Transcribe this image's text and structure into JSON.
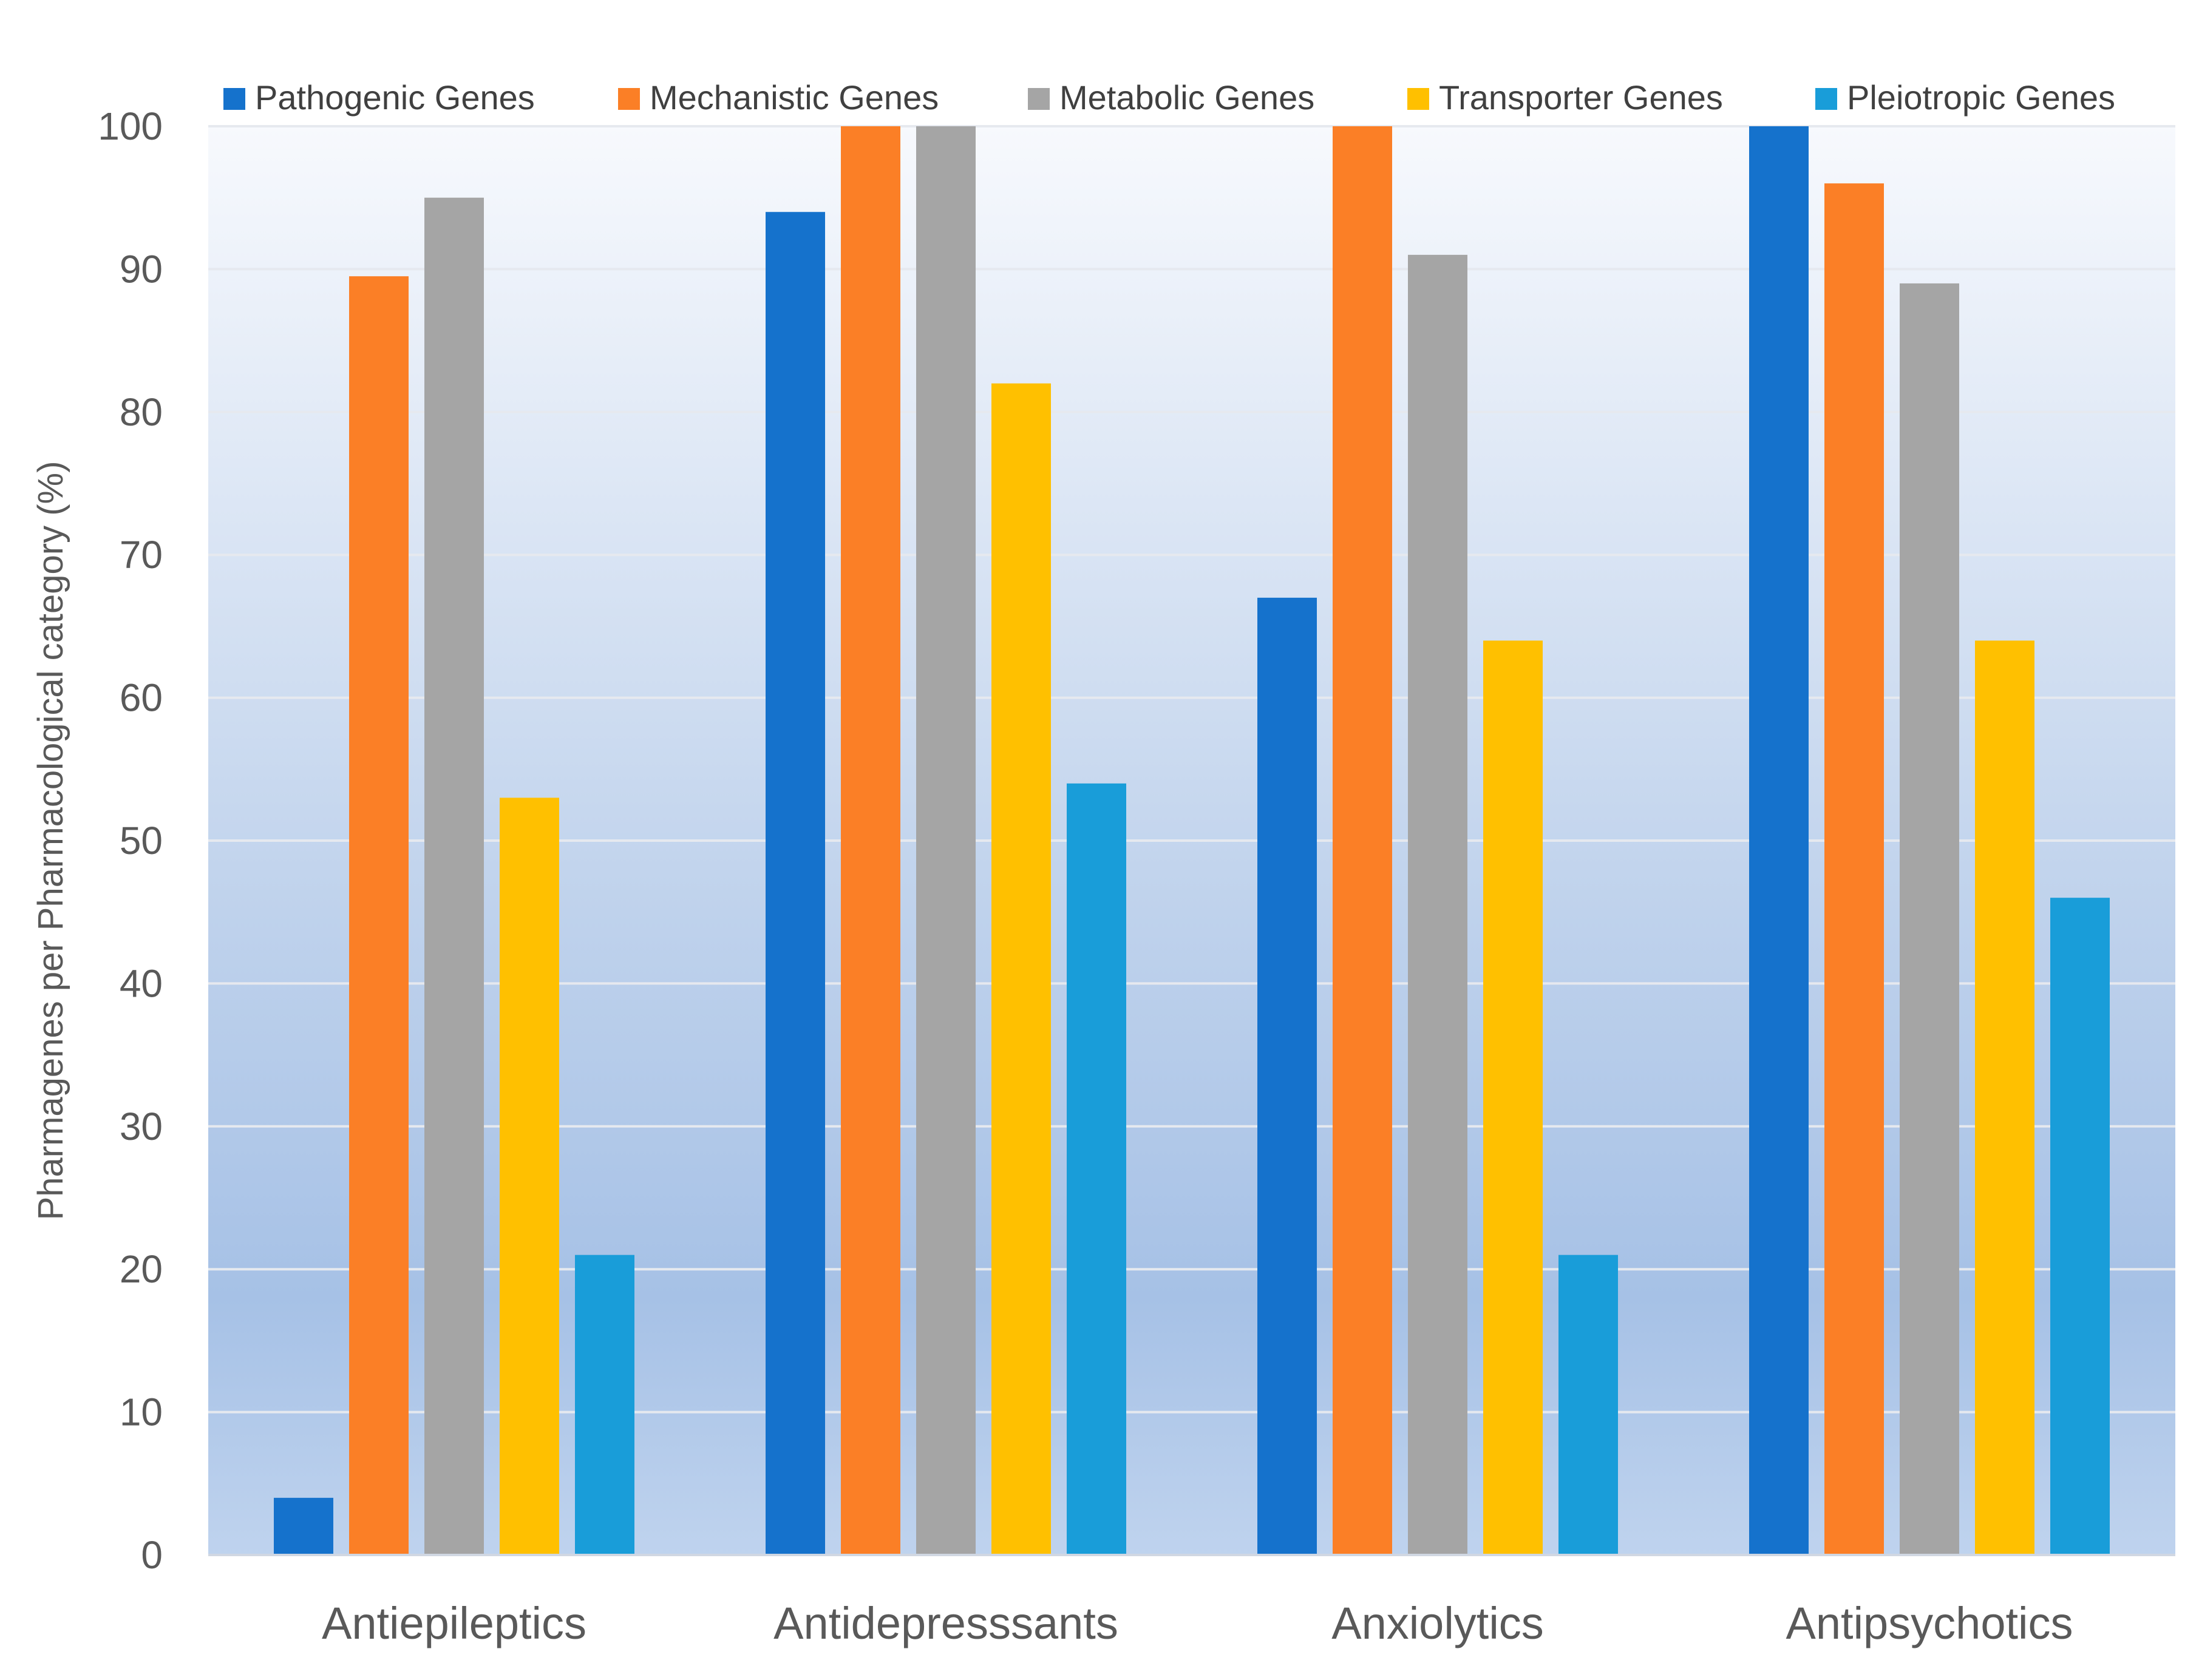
{
  "chart_data": {
    "type": "bar",
    "title": "",
    "xlabel": "",
    "ylabel": "Pharmagenes per Pharmacological category (%)",
    "ylim": [
      0,
      100
    ],
    "yticks": [
      0,
      10,
      20,
      30,
      40,
      50,
      60,
      70,
      80,
      90,
      100
    ],
    "grid": true,
    "legend_position": "top",
    "categories": [
      "Antiepileptics",
      "Antidepresssants",
      "Anxiolytics",
      "Antipsychotics"
    ],
    "series": [
      {
        "name": "Pathogenic Genes",
        "color": "#1572CC",
        "values": [
          4,
          94,
          67,
          100
        ]
      },
      {
        "name": "Mechanistic Genes",
        "color": "#FB7F26",
        "values": [
          89.5,
          100,
          100,
          96
        ]
      },
      {
        "name": "Metabolic Genes",
        "color": "#A5A5A5",
        "values": [
          95,
          100,
          91,
          89
        ]
      },
      {
        "name": "Transporter Genes",
        "color": "#FFC000",
        "values": [
          53,
          82,
          64,
          64
        ]
      },
      {
        "name": "Pleiotropic Genes",
        "color": "#199DD9",
        "values": [
          21,
          54,
          21,
          46
        ]
      }
    ]
  }
}
